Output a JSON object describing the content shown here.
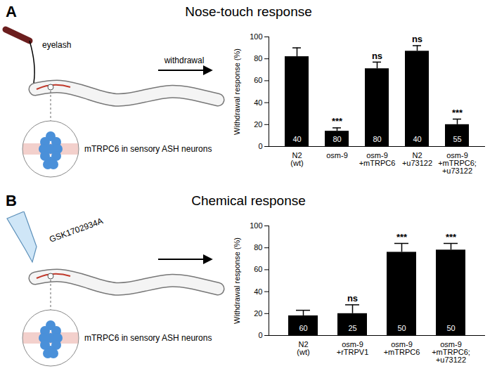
{
  "chart_data": [
    {
      "type": "bar",
      "panel": "A",
      "title": "Nose-touch response",
      "annotations": {
        "stimulus": "eyelash",
        "movement": "withdrawal",
        "inset": "mTRPC6 in sensory ASH neurons"
      },
      "categories": [
        "N2\n(wt)",
        "osm-9",
        "osm-9\n+mTRPC6",
        "N2\n+u73122",
        "osm-9\n+mTRPC6;\n+u73122"
      ],
      "values": [
        82,
        14,
        71,
        87,
        20
      ],
      "errors": [
        8,
        3,
        6,
        5,
        5
      ],
      "significance": [
        null,
        "***",
        "ns",
        "ns",
        "***"
      ],
      "sample_sizes": [
        40,
        80,
        80,
        40,
        55
      ],
      "ylabel": "Withdrawal response (%)",
      "ylim": [
        0,
        100
      ],
      "yticks": [
        0,
        20,
        40,
        60,
        80,
        100
      ],
      "color": "#000000"
    },
    {
      "type": "bar",
      "panel": "B",
      "title": "Chemical response",
      "annotations": {
        "stimulus": "GSK1702934A",
        "inset": "mTRPC6 in sensory ASH neurons"
      },
      "categories": [
        "N2\n(wt)",
        "osm-9\n+rTRPV1",
        "osm-9\n+mTRPC6",
        "osm-9\n+mTRPC6;\n+u73122"
      ],
      "values": [
        18,
        20,
        76,
        78
      ],
      "errors": [
        5,
        8,
        8,
        6
      ],
      "significance": [
        null,
        "ns",
        "***",
        "***"
      ],
      "sample_sizes": [
        60,
        25,
        50,
        50
      ],
      "ylabel": "Withdrawal response (%)",
      "ylim": [
        0,
        100
      ],
      "yticks": [
        0,
        20,
        40,
        60,
        80,
        100
      ],
      "color": "#000000"
    }
  ]
}
